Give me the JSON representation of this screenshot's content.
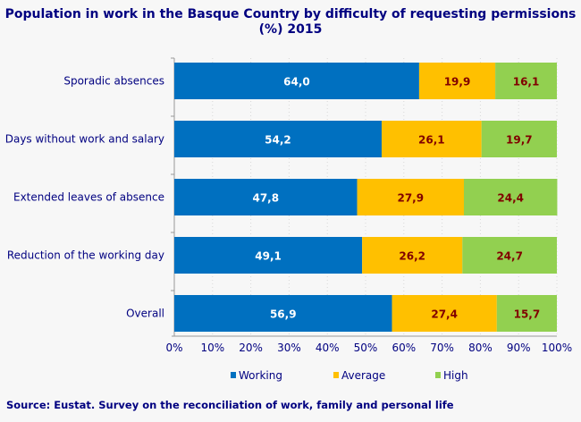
{
  "chart_data": {
    "type": "bar",
    "orientation": "horizontal",
    "stacked": true,
    "title": "Population in work in the Basque Country by difficulty of requesting permissions (%) 2015",
    "categories": [
      "Sporadic absences",
      "Days without work and salary",
      "Extended leaves of absence",
      "Reduction of the working day",
      "Overall"
    ],
    "series": [
      {
        "name": "Working",
        "color": "#0070c0",
        "label_color": "#ffffff",
        "values": [
          64.0,
          54.2,
          47.8,
          49.1,
          56.9
        ],
        "labels": [
          "64,0",
          "54,2",
          "47,8",
          "49,1",
          "56,9"
        ]
      },
      {
        "name": "Average",
        "color": "#ffc000",
        "label_color": "#800000",
        "values": [
          19.9,
          26.1,
          27.9,
          26.2,
          27.4
        ],
        "labels": [
          "19,9",
          "26,1",
          "27,9",
          "26,2",
          "27,4"
        ]
      },
      {
        "name": "High",
        "color": "#92d050",
        "label_color": "#800000",
        "values": [
          16.1,
          19.7,
          24.4,
          24.7,
          15.7
        ],
        "labels": [
          "16,1",
          "19,7",
          "24,4",
          "24,7",
          "15,7"
        ]
      }
    ],
    "xlim": [
      0,
      100
    ],
    "xticks": [
      "0%",
      "10%",
      "20%",
      "30%",
      "40%",
      "50%",
      "60%",
      "70%",
      "80%",
      "90%",
      "100%"
    ],
    "grid": true,
    "legend": "bottom"
  },
  "source": "Source: Eustat. Survey on the reconciliation of work, family and personal life"
}
